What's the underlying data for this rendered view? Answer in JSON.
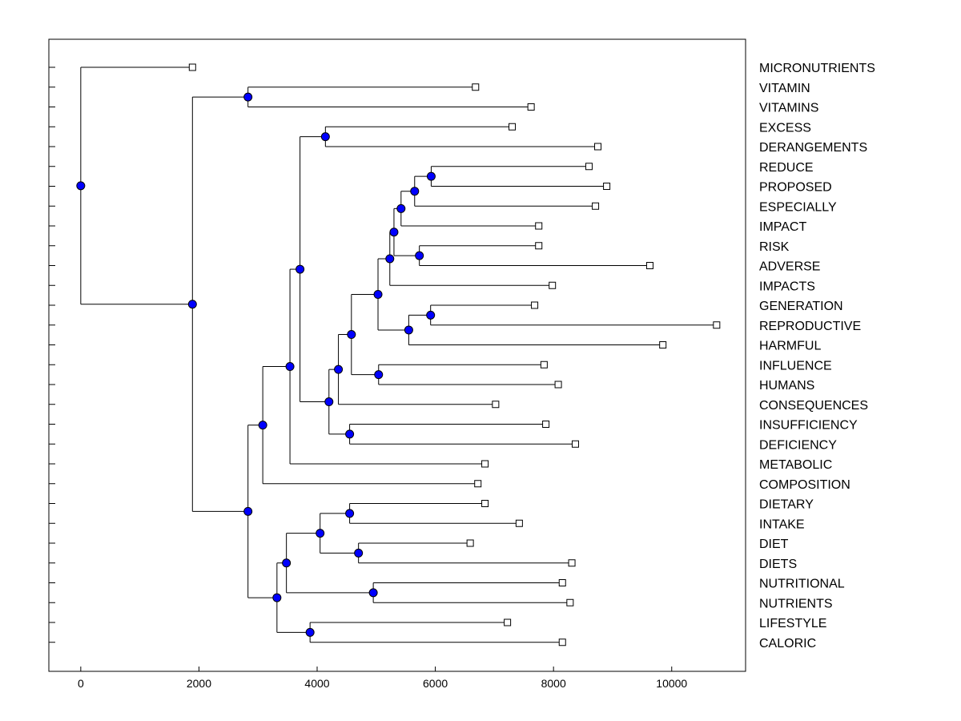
{
  "chart_data": {
    "type": "dendrogram",
    "orientation": "horizontal",
    "title": "",
    "xlabel": "",
    "ylabel": "",
    "xlim": [
      -540,
      11250
    ],
    "xticks": [
      0,
      2000,
      4000,
      6000,
      8000,
      10000
    ],
    "xtick_labels": [
      "0",
      "2000",
      "4000",
      "6000",
      "8000",
      "10000"
    ],
    "leaves": [
      {
        "label": "MICRONUTRIENTS",
        "x": 1890
      },
      {
        "label": "VITAMIN",
        "x": 6680
      },
      {
        "label": "VITAMINS",
        "x": 7620
      },
      {
        "label": "EXCESS",
        "x": 7300
      },
      {
        "label": "DERANGEMENTS",
        "x": 8750
      },
      {
        "label": "REDUCE",
        "x": 8600
      },
      {
        "label": "PROPOSED",
        "x": 8900
      },
      {
        "label": "ESPECIALLY",
        "x": 8710
      },
      {
        "label": "IMPACT",
        "x": 7750
      },
      {
        "label": "RISK",
        "x": 7750
      },
      {
        "label": "ADVERSE",
        "x": 9630
      },
      {
        "label": "IMPACTS",
        "x": 7980
      },
      {
        "label": "GENERATION",
        "x": 7680
      },
      {
        "label": "REPRODUCTIVE",
        "x": 10760
      },
      {
        "label": "HARMFUL",
        "x": 9850
      },
      {
        "label": "INFLUENCE",
        "x": 7840
      },
      {
        "label": "HUMANS",
        "x": 8080
      },
      {
        "label": "CONSEQUENCES",
        "x": 7020
      },
      {
        "label": "INSUFFICIENCY",
        "x": 7870
      },
      {
        "label": "DEFICIENCY",
        "x": 8370
      },
      {
        "label": "METABOLIC",
        "x": 6840
      },
      {
        "label": "COMPOSITION",
        "x": 6720
      },
      {
        "label": "DIETARY",
        "x": 6840
      },
      {
        "label": "INTAKE",
        "x": 7420
      },
      {
        "label": "DIET",
        "x": 6590
      },
      {
        "label": "DIETS",
        "x": 8310
      },
      {
        "label": "NUTRITIONAL",
        "x": 8150
      },
      {
        "label": "NUTRIENTS",
        "x": 8280
      },
      {
        "label": "LIFESTYLE",
        "x": 7220
      },
      {
        "label": "CALORIC",
        "x": 8150
      }
    ],
    "merges": [
      {
        "id": "m1",
        "x": 2830,
        "children": [
          "VITAMIN",
          "VITAMINS"
        ]
      },
      {
        "id": "m2",
        "x": 4140,
        "children": [
          "EXCESS",
          "DERANGEMENTS"
        ]
      },
      {
        "id": "m3",
        "x": 5930,
        "children": [
          "REDUCE",
          "PROPOSED"
        ]
      },
      {
        "id": "m4",
        "x": 5650,
        "children": [
          "m3",
          "ESPECIALLY"
        ]
      },
      {
        "id": "m5",
        "x": 5420,
        "children": [
          "m4",
          "IMPACT"
        ]
      },
      {
        "id": "m6",
        "x": 5730,
        "children": [
          "RISK",
          "ADVERSE"
        ]
      },
      {
        "id": "m7",
        "x": 5300,
        "children": [
          "m5",
          "m6"
        ]
      },
      {
        "id": "m8",
        "x": 5230,
        "children": [
          "m7",
          "IMPACTS"
        ]
      },
      {
        "id": "m9",
        "x": 5920,
        "children": [
          "GENERATION",
          "REPRODUCTIVE"
        ]
      },
      {
        "id": "m10",
        "x": 5550,
        "children": [
          "m9",
          "HARMFUL"
        ]
      },
      {
        "id": "m11",
        "x": 5030,
        "children": [
          "m8",
          "m10"
        ]
      },
      {
        "id": "m12",
        "x": 5040,
        "children": [
          "INFLUENCE",
          "HUMANS"
        ]
      },
      {
        "id": "m13",
        "x": 4580,
        "children": [
          "m11",
          "m12"
        ]
      },
      {
        "id": "m14",
        "x": 4360,
        "children": [
          "m13",
          "CONSEQUENCES"
        ]
      },
      {
        "id": "m15",
        "x": 4550,
        "children": [
          "INSUFFICIENCY",
          "DEFICIENCY"
        ]
      },
      {
        "id": "m16",
        "x": 4200,
        "children": [
          "m14",
          "m15"
        ]
      },
      {
        "id": "m17",
        "x": 3710,
        "children": [
          "m2",
          "m16"
        ]
      },
      {
        "id": "m18",
        "x": 3540,
        "children": [
          "m17",
          "METABOLIC"
        ]
      },
      {
        "id": "m19",
        "x": 3080,
        "children": [
          "m18",
          "COMPOSITION"
        ]
      },
      {
        "id": "m20",
        "x": 4550,
        "children": [
          "DIETARY",
          "INTAKE"
        ]
      },
      {
        "id": "m21",
        "x": 4700,
        "children": [
          "DIET",
          "DIETS"
        ]
      },
      {
        "id": "m22",
        "x": 4050,
        "children": [
          "m20",
          "m21"
        ]
      },
      {
        "id": "m23",
        "x": 4950,
        "children": [
          "NUTRITIONAL",
          "NUTRIENTS"
        ]
      },
      {
        "id": "m24",
        "x": 3480,
        "children": [
          "m22",
          "m23"
        ]
      },
      {
        "id": "m25",
        "x": 3880,
        "children": [
          "LIFESTYLE",
          "CALORIC"
        ]
      },
      {
        "id": "m26",
        "x": 3320,
        "children": [
          "m24",
          "m25"
        ]
      },
      {
        "id": "m27",
        "x": 2830,
        "children": [
          "m19",
          "m26"
        ]
      },
      {
        "id": "m28",
        "x": 1890,
        "children": [
          "m1",
          "m27"
        ]
      },
      {
        "id": "m29",
        "x": 0,
        "children": [
          "MICRONUTRIENTS",
          "m28"
        ]
      }
    ],
    "colors": {
      "node_fill": "#0000ff",
      "leaf_fill": "#ffffff",
      "line": "#000000"
    }
  }
}
